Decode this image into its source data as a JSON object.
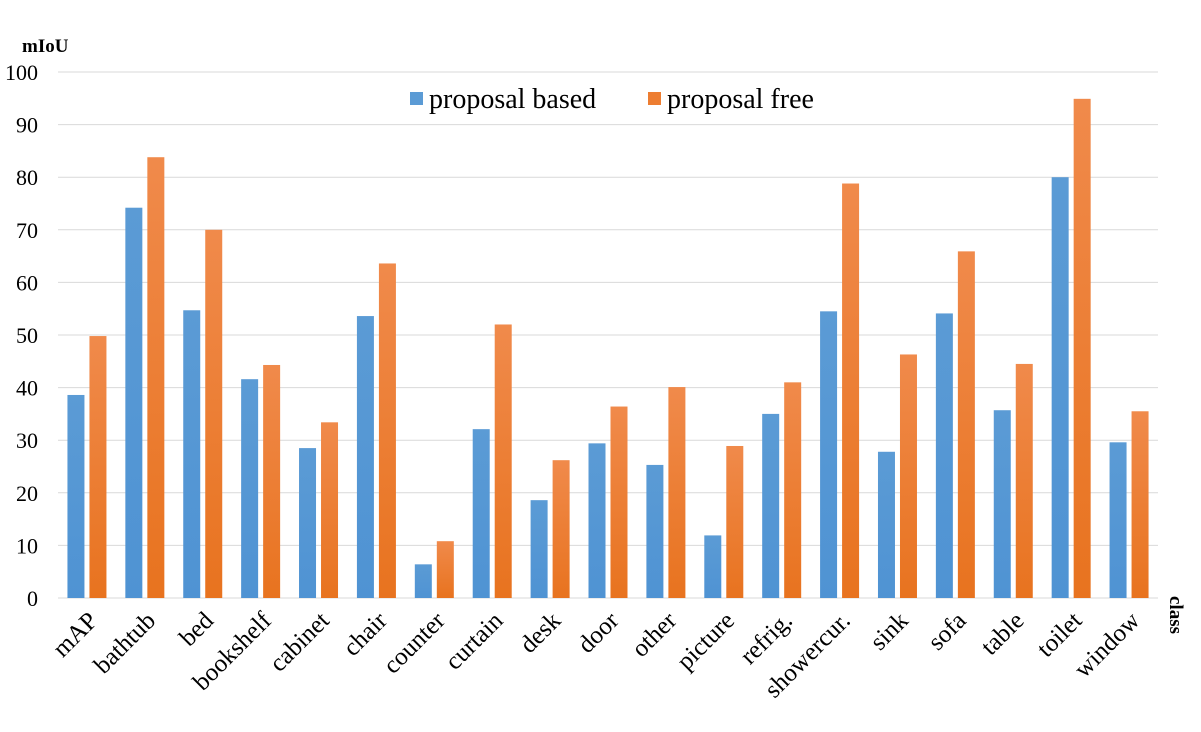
{
  "chart_data": {
    "type": "bar",
    "ylabel": "mIoU",
    "xlabel": "class",
    "ylim": [
      0,
      100
    ],
    "yticks": [
      0,
      10,
      20,
      30,
      40,
      50,
      60,
      70,
      80,
      90,
      100
    ],
    "grid": true,
    "legend_position": "top-center",
    "categories": [
      "mAP",
      "bathtub",
      "bed",
      "bookshelf",
      "cabinet",
      "chair",
      "counter",
      "curtain",
      "desk",
      "door",
      "other",
      "picture",
      "refrig.",
      "showercur.",
      "sink",
      "sofa",
      "table",
      "toilet",
      "window"
    ],
    "series": [
      {
        "name": "proposal based",
        "color": "#5b9bd5",
        "values": [
          38.6,
          74.2,
          54.7,
          41.6,
          28.5,
          53.6,
          6.4,
          32.1,
          18.6,
          29.4,
          25.3,
          11.9,
          35.0,
          54.5,
          27.8,
          54.1,
          35.7,
          80.0,
          29.6
        ]
      },
      {
        "name": "proposal free",
        "color": "#ed7d31",
        "values": [
          49.8,
          83.8,
          70.0,
          44.3,
          33.4,
          63.6,
          10.8,
          52.0,
          26.2,
          36.4,
          40.1,
          28.9,
          41.0,
          78.8,
          46.3,
          65.9,
          44.5,
          94.9,
          35.5
        ]
      }
    ]
  }
}
